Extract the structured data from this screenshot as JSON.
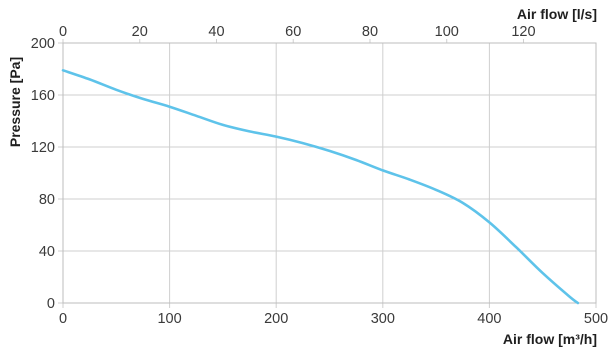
{
  "chart_data": {
    "type": "line",
    "title": "",
    "ylabel": "Pressure [Pa]",
    "xlabel": "Air flow [m³/h]",
    "x2label": "Air flow [l/s]",
    "xlim": [
      0,
      500
    ],
    "ylim": [
      0,
      200
    ],
    "x2lim": [
      0,
      138.9
    ],
    "xticks": [
      "0",
      "100",
      "200",
      "300",
      "400",
      "500"
    ],
    "yticks": [
      "0",
      "40",
      "80",
      "120",
      "160",
      "200"
    ],
    "x2ticks": [
      "0",
      "20",
      "40",
      "60",
      "80",
      "100",
      "120"
    ],
    "grid": true,
    "line_color": "#5ec3ea",
    "series": [
      {
        "x": [
          0,
          25,
          50,
          75,
          100,
          125,
          150,
          175,
          200,
          225,
          250,
          275,
          300,
          325,
          350,
          375,
          400,
          425,
          450,
          475,
          483
        ],
        "y": [
          179,
          172,
          164,
          157,
          151,
          144,
          137,
          132,
          128,
          123,
          117,
          110,
          102,
          95,
          87,
          77,
          62,
          43,
          23,
          5,
          0
        ]
      }
    ]
  }
}
